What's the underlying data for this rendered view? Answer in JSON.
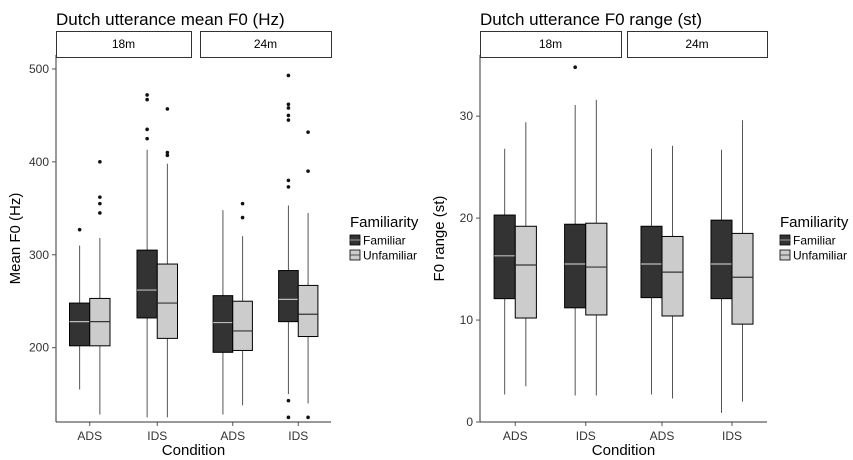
{
  "colors": {
    "familiar": "#333333",
    "unfamiliar": "#cccccc",
    "outline": "#000000"
  },
  "chart_data": [
    {
      "type": "box",
      "title": "Dutch utterance mean F0 (Hz)",
      "xlabel": "Condition",
      "ylabel": "Mean F0 (Hz)",
      "ylim": [
        120,
        515
      ],
      "yticks": [
        200,
        300,
        400,
        500
      ],
      "grid": false,
      "legend": {
        "title": "Familiarity",
        "placement": "right",
        "entries": [
          "Familiar",
          "Unfamiliar"
        ]
      },
      "facets": [
        {
          "label": "18m",
          "categories": [
            "ADS",
            "IDS"
          ],
          "groups": [
            {
              "condition": "ADS",
              "series": "Familiar",
              "whisker_low": 155,
              "q1": 202,
              "median": 228,
              "q3": 248,
              "whisker_high": 310,
              "outliers": [
                327
              ]
            },
            {
              "condition": "ADS",
              "series": "Unfamiliar",
              "whisker_low": 128,
              "q1": 202,
              "median": 228,
              "q3": 253,
              "whisker_high": 318,
              "outliers": [
                345,
                355,
                362,
                400
              ]
            },
            {
              "condition": "IDS",
              "series": "Familiar",
              "whisker_low": 125,
              "q1": 232,
              "median": 262,
              "q3": 305,
              "whisker_high": 413,
              "outliers": [
                425,
                435,
                467,
                472
              ]
            },
            {
              "condition": "IDS",
              "series": "Unfamiliar",
              "whisker_low": 125,
              "q1": 210,
              "median": 248,
              "q3": 290,
              "whisker_high": 398,
              "outliers": [
                407,
                410,
                457
              ]
            }
          ]
        },
        {
          "label": "24m",
          "categories": [
            "ADS",
            "IDS"
          ],
          "groups": [
            {
              "condition": "ADS",
              "series": "Familiar",
              "whisker_low": 128,
              "q1": 195,
              "median": 227,
              "q3": 256,
              "whisker_high": 348,
              "outliers": []
            },
            {
              "condition": "ADS",
              "series": "Unfamiliar",
              "whisker_low": 138,
              "q1": 197,
              "median": 218,
              "q3": 250,
              "whisker_high": 320,
              "outliers": [
                340,
                355
              ]
            },
            {
              "condition": "IDS",
              "series": "Familiar",
              "whisker_low": 150,
              "q1": 228,
              "median": 252,
              "q3": 283,
              "whisker_high": 353,
              "outliers": [
                125,
                143,
                373,
                380,
                445,
                450,
                458,
                462,
                493
              ]
            },
            {
              "condition": "IDS",
              "series": "Unfamiliar",
              "whisker_low": 140,
              "q1": 212,
              "median": 236,
              "q3": 267,
              "whisker_high": 345,
              "outliers": [
                125,
                390,
                432
              ]
            }
          ]
        }
      ]
    },
    {
      "type": "box",
      "title": "Dutch utterance F0 range (st)",
      "xlabel": "Condition",
      "ylabel": "F0 range (st)",
      "ylim": [
        0,
        36
      ],
      "yticks": [
        0,
        10,
        20,
        30
      ],
      "grid": false,
      "legend": {
        "title": "Familiarity",
        "placement": "right",
        "entries": [
          "Familiar",
          "Unfamiliar"
        ]
      },
      "facets": [
        {
          "label": "18m",
          "categories": [
            "ADS",
            "IDS"
          ],
          "groups": [
            {
              "condition": "ADS",
              "series": "Familiar",
              "whisker_low": 2.7,
              "q1": 12.1,
              "median": 16.3,
              "q3": 20.3,
              "whisker_high": 26.8,
              "outliers": []
            },
            {
              "condition": "ADS",
              "series": "Unfamiliar",
              "whisker_low": 3.5,
              "q1": 10.2,
              "median": 15.4,
              "q3": 19.2,
              "whisker_high": 29.4,
              "outliers": []
            },
            {
              "condition": "IDS",
              "series": "Familiar",
              "whisker_low": 2.6,
              "q1": 11.2,
              "median": 15.5,
              "q3": 19.4,
              "whisker_high": 31.1,
              "outliers": [
                34.8
              ]
            },
            {
              "condition": "IDS",
              "series": "Unfamiliar",
              "whisker_low": 2.6,
              "q1": 10.5,
              "median": 15.2,
              "q3": 19.5,
              "whisker_high": 31.6,
              "outliers": []
            }
          ]
        },
        {
          "label": "24m",
          "categories": [
            "ADS",
            "IDS"
          ],
          "groups": [
            {
              "condition": "ADS",
              "series": "Familiar",
              "whisker_low": 2.7,
              "q1": 12.2,
              "median": 15.5,
              "q3": 19.2,
              "whisker_high": 26.8,
              "outliers": []
            },
            {
              "condition": "ADS",
              "series": "Unfamiliar",
              "whisker_low": 2.3,
              "q1": 10.4,
              "median": 14.7,
              "q3": 18.2,
              "whisker_high": 27.1,
              "outliers": []
            },
            {
              "condition": "IDS",
              "series": "Familiar",
              "whisker_low": 0.9,
              "q1": 12.1,
              "median": 15.5,
              "q3": 19.8,
              "whisker_high": 26.7,
              "outliers": []
            },
            {
              "condition": "IDS",
              "series": "Unfamiliar",
              "whisker_low": 2.0,
              "q1": 9.6,
              "median": 14.2,
              "q3": 18.5,
              "whisker_high": 29.6,
              "outliers": []
            }
          ]
        }
      ]
    }
  ]
}
